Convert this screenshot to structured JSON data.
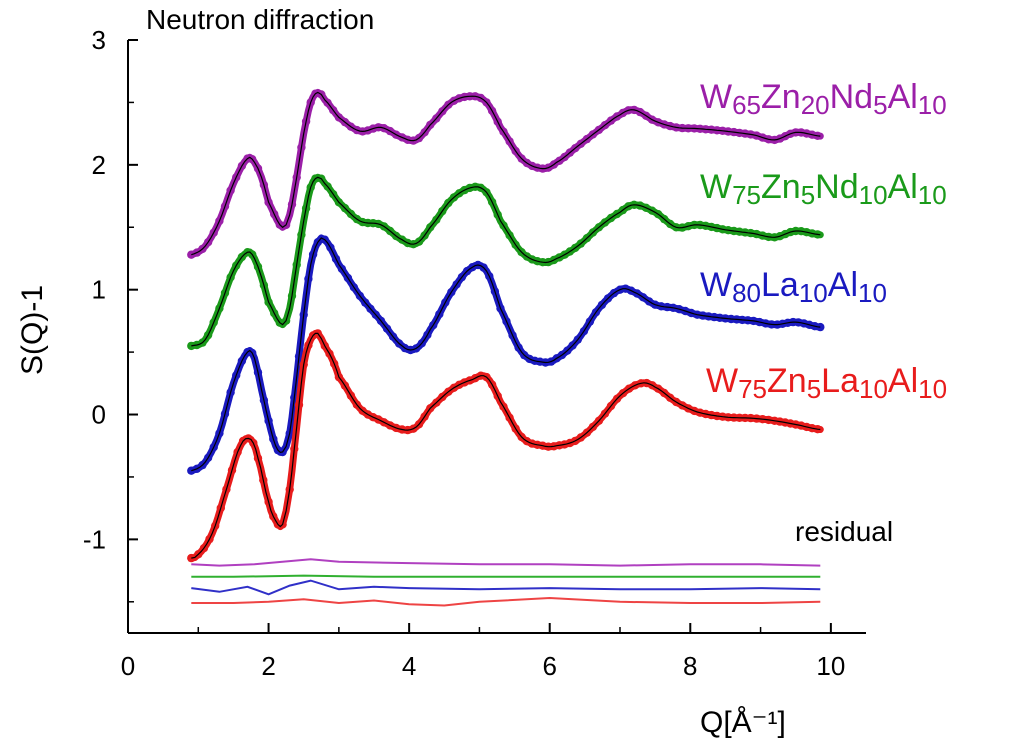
{
  "chart_data": {
    "type": "line",
    "annotation_top": "Neutron diffraction",
    "annotation_residual": "residual",
    "xlabel": "Q[Å⁻¹]",
    "ylabel": "S(Q)-1",
    "xlim": [
      0,
      10.5
    ],
    "ylim": [
      -1.75,
      3.0
    ],
    "x_ticks": [
      0,
      2,
      4,
      6,
      8,
      10
    ],
    "x_tick_labels": [
      "0",
      "2",
      "4",
      "6",
      "8",
      "10"
    ],
    "y_ticks": [
      -1,
      0,
      1,
      2,
      3
    ],
    "y_tick_labels": [
      "-1",
      "0",
      "1",
      "2",
      "3"
    ],
    "fit_line_color": "#000000",
    "series": [
      {
        "name": "W65Zn20Nd5Al10",
        "label_parts": [
          [
            "W",
            ""
          ],
          [
            "65",
            "sub"
          ],
          [
            "Zn",
            ""
          ],
          [
            "20",
            "sub"
          ],
          [
            "Nd",
            ""
          ],
          [
            "5",
            "sub"
          ],
          [
            "Al",
            ""
          ],
          [
            "10",
            "sub"
          ]
        ],
        "color": "#9b1fa8",
        "x": [
          0.9,
          1.1,
          1.3,
          1.5,
          1.7,
          1.8,
          1.9,
          2.0,
          2.2,
          2.3,
          2.4,
          2.5,
          2.6,
          2.7,
          2.8,
          3.0,
          3.3,
          3.6,
          3.9,
          4.1,
          4.3,
          4.6,
          4.9,
          5.1,
          5.3,
          5.6,
          5.9,
          6.1,
          6.4,
          6.7,
          7.0,
          7.2,
          7.5,
          7.8,
          8.1,
          8.5,
          8.9,
          9.2,
          9.5,
          9.85
        ],
        "y": [
          1.28,
          1.35,
          1.55,
          1.85,
          2.05,
          2.02,
          1.9,
          1.7,
          1.5,
          1.6,
          1.9,
          2.25,
          2.5,
          2.58,
          2.52,
          2.38,
          2.27,
          2.3,
          2.22,
          2.2,
          2.32,
          2.5,
          2.55,
          2.5,
          2.3,
          2.05,
          1.97,
          2.02,
          2.15,
          2.28,
          2.4,
          2.44,
          2.35,
          2.3,
          2.29,
          2.27,
          2.24,
          2.2,
          2.26,
          2.23
        ]
      },
      {
        "name": "W75Zn5Nd10Al10",
        "label_parts": [
          [
            "W",
            ""
          ],
          [
            "75",
            "sub"
          ],
          [
            "Zn",
            ""
          ],
          [
            "5",
            "sub"
          ],
          [
            "Nd",
            ""
          ],
          [
            "10",
            "sub"
          ],
          [
            "Al",
            ""
          ],
          [
            "10",
            "sub"
          ]
        ],
        "color": "#1a9a1a",
        "x": [
          0.9,
          1.1,
          1.3,
          1.5,
          1.7,
          1.8,
          1.9,
          2.0,
          2.2,
          2.3,
          2.4,
          2.5,
          2.6,
          2.7,
          2.8,
          3.0,
          3.3,
          3.6,
          3.9,
          4.1,
          4.3,
          4.6,
          4.9,
          5.1,
          5.3,
          5.6,
          5.9,
          6.1,
          6.4,
          6.7,
          7.0,
          7.2,
          7.5,
          7.8,
          8.1,
          8.5,
          8.9,
          9.2,
          9.5,
          9.85
        ],
        "y": [
          0.55,
          0.6,
          0.85,
          1.15,
          1.3,
          1.25,
          1.1,
          0.9,
          0.72,
          0.85,
          1.2,
          1.55,
          1.82,
          1.9,
          1.85,
          1.7,
          1.55,
          1.52,
          1.4,
          1.37,
          1.5,
          1.72,
          1.82,
          1.78,
          1.55,
          1.3,
          1.22,
          1.25,
          1.35,
          1.5,
          1.62,
          1.68,
          1.62,
          1.5,
          1.52,
          1.48,
          1.45,
          1.42,
          1.47,
          1.44
        ]
      },
      {
        "name": "W80La10Al10",
        "label_parts": [
          [
            "W",
            ""
          ],
          [
            "80",
            "sub"
          ],
          [
            "La",
            ""
          ],
          [
            "10",
            "sub"
          ],
          [
            "Al",
            ""
          ],
          [
            "10",
            "sub"
          ]
        ],
        "color": "#1a1ac0",
        "x": [
          0.9,
          1.1,
          1.3,
          1.5,
          1.7,
          1.8,
          1.9,
          2.0,
          2.1,
          2.2,
          2.3,
          2.4,
          2.5,
          2.6,
          2.7,
          2.8,
          3.0,
          3.3,
          3.6,
          3.9,
          4.1,
          4.3,
          4.6,
          4.9,
          5.1,
          5.3,
          5.6,
          5.9,
          6.1,
          6.4,
          6.7,
          7.0,
          7.2,
          7.5,
          7.8,
          8.1,
          8.5,
          8.9,
          9.2,
          9.5,
          9.85
        ],
        "y": [
          -0.45,
          -0.38,
          -0.15,
          0.25,
          0.5,
          0.45,
          0.2,
          -0.05,
          -0.25,
          -0.3,
          -0.15,
          0.3,
          0.8,
          1.2,
          1.38,
          1.4,
          1.2,
          0.95,
          0.75,
          0.55,
          0.53,
          0.68,
          0.98,
          1.18,
          1.15,
          0.85,
          0.5,
          0.42,
          0.45,
          0.6,
          0.85,
          1.0,
          0.98,
          0.88,
          0.85,
          0.8,
          0.77,
          0.75,
          0.72,
          0.74,
          0.7
        ]
      },
      {
        "name": "W75Zn5La10Al10",
        "label_parts": [
          [
            "W",
            ""
          ],
          [
            "75",
            "sub"
          ],
          [
            "Zn",
            ""
          ],
          [
            "5",
            "sub"
          ],
          [
            "La",
            ""
          ],
          [
            "10",
            "sub"
          ],
          [
            "Al",
            ""
          ],
          [
            "10",
            "sub"
          ]
        ],
        "color": "#e81c1c",
        "x": [
          0.9,
          1.0,
          1.2,
          1.4,
          1.6,
          1.75,
          1.85,
          2.0,
          2.1,
          2.2,
          2.3,
          2.4,
          2.5,
          2.6,
          2.7,
          2.8,
          2.9,
          3.0,
          3.3,
          3.6,
          3.9,
          4.1,
          4.3,
          4.6,
          4.9,
          5.1,
          5.3,
          5.6,
          5.9,
          6.1,
          6.4,
          6.7,
          7.0,
          7.3,
          7.5,
          7.8,
          8.1,
          8.5,
          8.9,
          9.2,
          9.5,
          9.85
        ],
        "y": [
          -1.15,
          -1.12,
          -0.95,
          -0.6,
          -0.25,
          -0.2,
          -0.35,
          -0.7,
          -0.85,
          -0.88,
          -0.6,
          -0.1,
          0.4,
          0.6,
          0.65,
          0.55,
          0.45,
          0.3,
          0.05,
          -0.05,
          -0.12,
          -0.1,
          0.05,
          0.2,
          0.28,
          0.3,
          0.1,
          -0.18,
          -0.25,
          -0.25,
          -0.2,
          -0.05,
          0.15,
          0.25,
          0.22,
          0.1,
          0.02,
          -0.02,
          -0.03,
          -0.05,
          -0.08,
          -0.12
        ]
      }
    ],
    "residuals": [
      {
        "name": "W65Zn20Nd5Al10",
        "color": "#b040c0",
        "x": [
          0.9,
          1.3,
          1.8,
          2.2,
          2.6,
          3.0,
          4.0,
          5.0,
          6.0,
          7.0,
          8.0,
          9.0,
          9.85
        ],
        "y": [
          -1.2,
          -1.21,
          -1.2,
          -1.18,
          -1.16,
          -1.18,
          -1.19,
          -1.2,
          -1.2,
          -1.21,
          -1.2,
          -1.2,
          -1.21
        ]
      },
      {
        "name": "W75Zn5Nd10Al10",
        "color": "#30b030",
        "x": [
          0.9,
          1.5,
          2.5,
          3.5,
          4.5,
          5.5,
          6.5,
          7.5,
          8.5,
          9.85
        ],
        "y": [
          -1.3,
          -1.3,
          -1.29,
          -1.3,
          -1.3,
          -1.3,
          -1.3,
          -1.3,
          -1.3,
          -1.3
        ]
      },
      {
        "name": "W80La10Al10",
        "color": "#3030c8",
        "x": [
          0.9,
          1.3,
          1.7,
          2.0,
          2.3,
          2.6,
          3.0,
          3.5,
          4.0,
          5.0,
          6.0,
          7.0,
          8.0,
          9.0,
          9.85
        ],
        "y": [
          -1.39,
          -1.42,
          -1.38,
          -1.44,
          -1.37,
          -1.33,
          -1.4,
          -1.38,
          -1.39,
          -1.4,
          -1.39,
          -1.4,
          -1.4,
          -1.39,
          -1.4
        ]
      },
      {
        "name": "W75Zn5La10Al10",
        "color": "#ee4444",
        "x": [
          0.9,
          1.5,
          2.0,
          2.5,
          3.0,
          3.5,
          4.0,
          4.5,
          5.0,
          6.0,
          7.0,
          8.0,
          9.0,
          9.85
        ],
        "y": [
          -1.51,
          -1.51,
          -1.5,
          -1.48,
          -1.51,
          -1.49,
          -1.52,
          -1.53,
          -1.5,
          -1.47,
          -1.5,
          -1.51,
          -1.51,
          -1.5
        ]
      }
    ]
  }
}
